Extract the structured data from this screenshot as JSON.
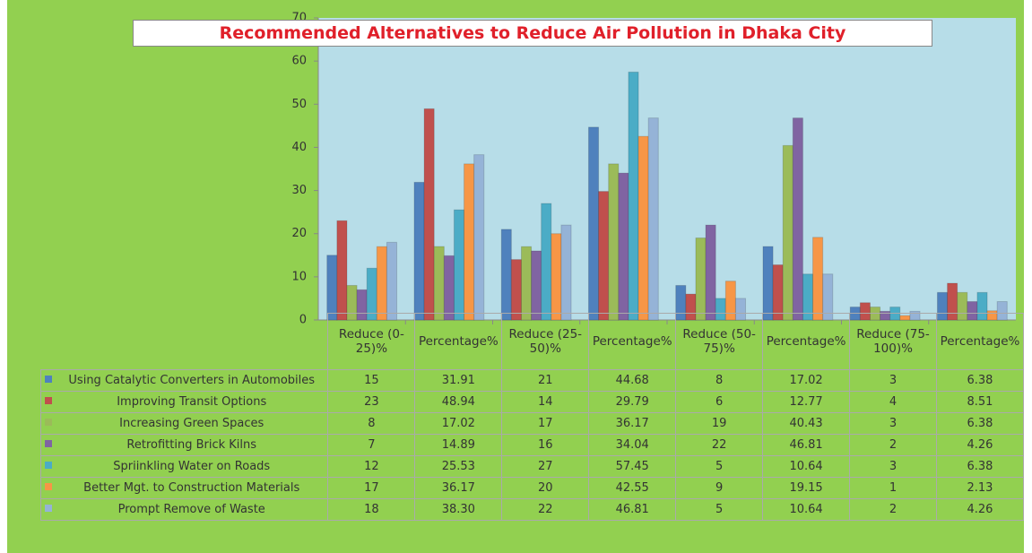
{
  "chart_data": {
    "type": "bar",
    "title": "Recommended Alternatives to Reduce Air Pollution in Dhaka City",
    "categories": [
      "Reduce (0-25)%",
      "Percentage%",
      "Reduce (25-50)%",
      "Percentage%",
      "Reduce (50-75)%",
      "Percentage%",
      "Reduce (75-100)%",
      "Percentage%"
    ],
    "series": [
      {
        "name": "Using Catalytic Converters in Automobiles",
        "color": "#4f81bd",
        "values": [
          15,
          31.91,
          21,
          44.68,
          8,
          17.02,
          3,
          6.38
        ]
      },
      {
        "name": "Improving Transit Options",
        "color": "#c0504d",
        "values": [
          23,
          48.94,
          14,
          29.79,
          6,
          12.77,
          4,
          8.51
        ]
      },
      {
        "name": "Increasing Green Spaces",
        "color": "#9bbb59",
        "values": [
          8,
          17.02,
          17,
          36.17,
          19,
          40.43,
          3,
          6.38
        ]
      },
      {
        "name": "Retrofitting Brick Kilns",
        "color": "#8064a2",
        "values": [
          7,
          14.89,
          16,
          34.04,
          22,
          46.81,
          2,
          4.26
        ]
      },
      {
        "name": "Spriinkling Water on Roads",
        "color": "#4bacc6",
        "values": [
          12,
          25.53,
          27,
          57.45,
          5,
          10.64,
          3,
          6.38
        ]
      },
      {
        "name": "Better Mgt. to Construction Materials",
        "color": "#f79646",
        "values": [
          17,
          36.17,
          20,
          42.55,
          9,
          19.15,
          1,
          2.13
        ]
      },
      {
        "name": "Prompt Remove of Waste",
        "color": "#95b3d7",
        "values": [
          18,
          38.3,
          22,
          46.81,
          5,
          10.64,
          2,
          4.26
        ],
        "value_labels": [
          "18",
          "38.30",
          "22",
          "46.81",
          "5",
          "10.64",
          "2",
          "4.26"
        ]
      }
    ],
    "ylim": [
      0,
      70
    ],
    "yticks": [
      0,
      10,
      20,
      30,
      40,
      50,
      60,
      70
    ],
    "grid": false
  }
}
